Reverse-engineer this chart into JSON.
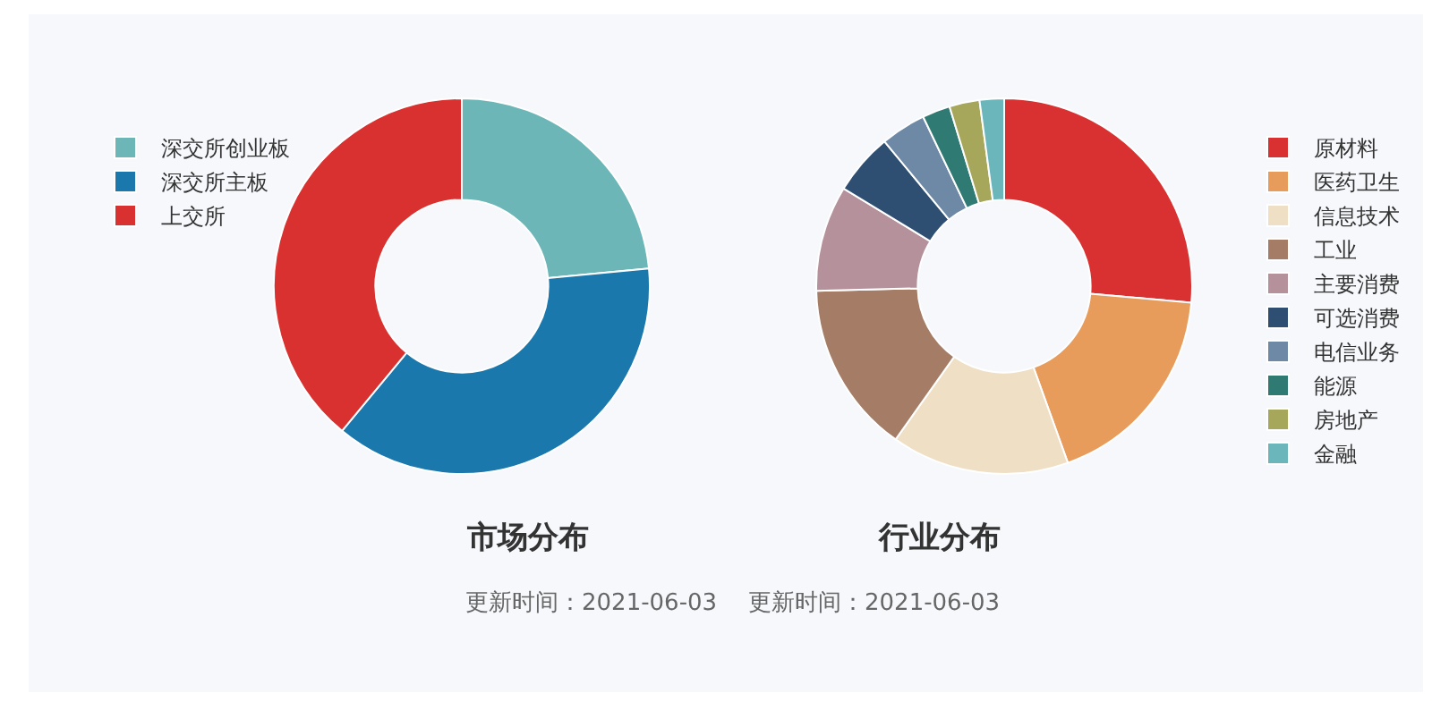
{
  "chart_data": [
    {
      "type": "donut",
      "title": "市场分布",
      "subtitle": "更新时间：2021-06-03",
      "legend": "top left",
      "categories": [
        "深交所创业板",
        "深交所主板",
        "上交所"
      ],
      "values": [
        23.5,
        37.5,
        39
      ],
      "colors": [
        "#6db6b8",
        "#1a78ad",
        "#d93030"
      ]
    },
    {
      "type": "donut",
      "title": "行业分布",
      "subtitle": "更新时间：2021-06-03",
      "legend": "right",
      "categories": [
        "原材料",
        "医药卫生",
        "信息技术",
        "工业",
        "主要消费",
        "可选消费",
        "电信业务",
        "能源",
        "房地产",
        "金融"
      ],
      "values": [
        26.4,
        18.1,
        15.3,
        14.8,
        9.1,
        5.3,
        3.9,
        2.4,
        2.6,
        2.1
      ],
      "colors": [
        "#d93131",
        "#e89c5c",
        "#efdfc5",
        "#a57c66",
        "#b5929b",
        "#2f4f72",
        "#6d89a6",
        "#2f7a72",
        "#a6a75a",
        "#6bb6bb"
      ]
    }
  ]
}
